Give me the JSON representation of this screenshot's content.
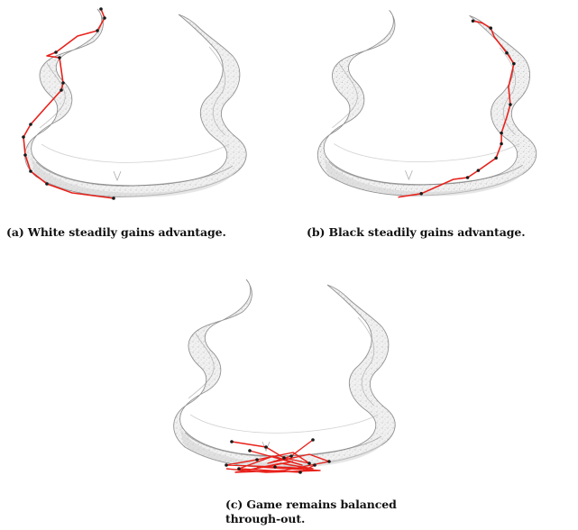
{
  "figures": [
    {
      "id": "a",
      "caption": "(a) White steadily gains advantage."
    },
    {
      "id": "b",
      "caption": "(b) Black steadily gains advantage."
    },
    {
      "id": "c",
      "caption": "(c) Game remains balanced through-out."
    }
  ],
  "colors": {
    "manifold": "#8a8a8a",
    "manifold_fill": "#e9e9e9",
    "trajectory": "#e8211b",
    "marker": "#1a1a1a"
  }
}
